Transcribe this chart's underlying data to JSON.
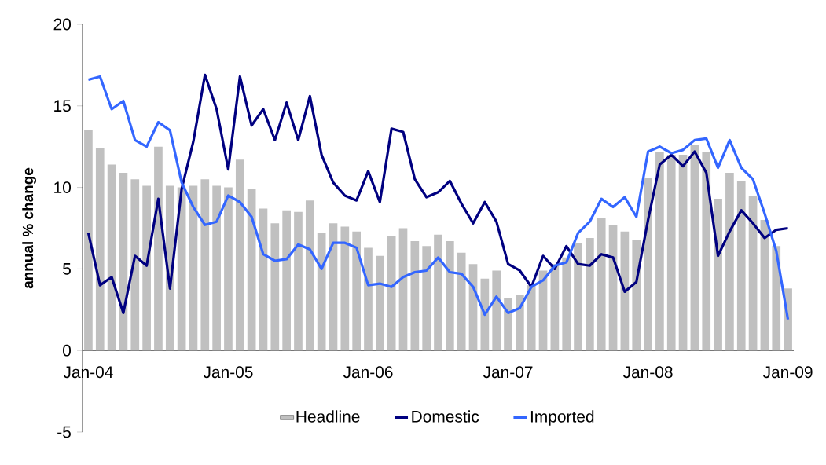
{
  "chart_data": {
    "type": "bar",
    "ylabel": "annual % change",
    "categories": [
      "Jan-04",
      null,
      null,
      null,
      null,
      null,
      null,
      null,
      null,
      null,
      null,
      null,
      "Jan-05",
      null,
      null,
      null,
      null,
      null,
      null,
      null,
      null,
      null,
      null,
      null,
      "Jan-06",
      null,
      null,
      null,
      null,
      null,
      null,
      null,
      null,
      null,
      null,
      null,
      "Jan-07",
      null,
      null,
      null,
      null,
      null,
      null,
      null,
      null,
      null,
      null,
      null,
      "Jan-08",
      null,
      null,
      null,
      null,
      null,
      null,
      null,
      null,
      null,
      null,
      null,
      "Jan-09"
    ],
    "series": [
      {
        "name": "Headline",
        "color": "#c0c0c0",
        "values": [
          13.5,
          12.4,
          11.4,
          10.9,
          10.5,
          10.1,
          12.5,
          10.1,
          10.0,
          10.1,
          10.5,
          10.1,
          10.0,
          11.7,
          9.9,
          8.7,
          7.8,
          8.6,
          8.5,
          9.2,
          7.2,
          7.8,
          7.6,
          7.3,
          6.3,
          5.8,
          7.0,
          7.5,
          6.7,
          6.4,
          7.1,
          6.7,
          6.0,
          5.3,
          4.4,
          4.9,
          3.2,
          3.4,
          4.0,
          4.9,
          5.3,
          5.7,
          6.6,
          6.9,
          8.1,
          7.7,
          7.3,
          6.8,
          10.6,
          12.2,
          12.0,
          12.0,
          12.6,
          12.2,
          9.3,
          10.9,
          10.4,
          9.5,
          8.0,
          6.4,
          3.8
        ]
      },
      {
        "name": "Domestic",
        "type": "line",
        "color": "#000080",
        "values": [
          7.2,
          4.0,
          4.5,
          2.3,
          5.8,
          5.2,
          9.3,
          3.8,
          9.9,
          12.8,
          16.9,
          14.8,
          11.1,
          16.8,
          13.8,
          14.8,
          12.9,
          15.2,
          12.9,
          15.6,
          12.0,
          10.3,
          9.5,
          9.2,
          11.0,
          9.1,
          13.6,
          13.4,
          10.5,
          9.4,
          9.7,
          10.4,
          9.0,
          7.8,
          9.1,
          7.9,
          5.3,
          4.9,
          3.9,
          5.8,
          5.0,
          6.4,
          5.3,
          5.2,
          5.9,
          5.7,
          3.6,
          4.2,
          8.0,
          11.4,
          12.0,
          11.3,
          12.2,
          10.9,
          5.8,
          7.3,
          8.6,
          7.8,
          6.9,
          7.4,
          7.5
        ]
      },
      {
        "name": "Imported",
        "type": "line",
        "color": "#3366ff",
        "values": [
          16.6,
          16.8,
          14.8,
          15.3,
          12.9,
          12.5,
          14.0,
          13.5,
          10.3,
          8.8,
          7.7,
          7.9,
          9.5,
          9.1,
          8.2,
          5.9,
          5.5,
          5.6,
          6.5,
          6.2,
          5.0,
          6.6,
          6.6,
          6.3,
          4.0,
          4.1,
          3.9,
          4.5,
          4.8,
          4.9,
          5.7,
          4.8,
          4.7,
          3.9,
          2.2,
          3.3,
          2.3,
          2.6,
          3.9,
          4.3,
          5.2,
          5.4,
          7.2,
          7.9,
          9.3,
          8.8,
          9.4,
          8.2,
          12.2,
          12.5,
          12.1,
          12.3,
          12.9,
          13.0,
          11.2,
          12.9,
          11.2,
          10.5,
          8.4,
          6.1,
          1.9
        ]
      }
    ],
    "ylim": [
      -5,
      20
    ],
    "yticks": [
      -5,
      0,
      5,
      10,
      15,
      20
    ],
    "legend": "bottom"
  }
}
